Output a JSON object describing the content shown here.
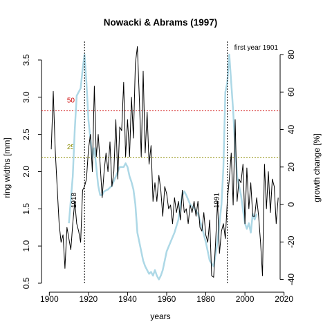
{
  "chart_data": {
    "type": "line",
    "title": "Nowacki & Abrams (1997)",
    "xlabel": "years",
    "ylabel_left": "ring widths [mm]",
    "ylabel_right": "growth change [%]",
    "note": "first year 1901",
    "xlim": [
      1896,
      2018
    ],
    "ylim_left": [
      0.5,
      3.75
    ],
    "ylim_right": [
      -42,
      87
    ],
    "x_ticks": [
      1900,
      1920,
      1940,
      1960,
      1980,
      2000,
      2020
    ],
    "y_left_ticks": [
      "0.5",
      "1.0",
      "1.5",
      "2.0",
      "2.5",
      "3.0",
      "3.5"
    ],
    "y_right_ticks": [
      "-40",
      "-20",
      "0",
      "20",
      "40",
      "60",
      "80"
    ],
    "colors": {
      "ring_width": "#000000",
      "growth_change": "#add8e6",
      "threshold_50": "#cd0000",
      "threshold_25": "#8b8b00"
    },
    "thresholds": [
      {
        "label": "50",
        "value": 50,
        "color": "#cd0000"
      },
      {
        "label": "25",
        "value": 25,
        "color": "#8b8b00"
      }
    ],
    "events": [
      {
        "label": "1918",
        "year": 1918
      },
      {
        "label": "1991",
        "year": 1991
      }
    ],
    "series": [
      {
        "axis": "left",
        "color": "#000000",
        "x": [
          1901,
          1902,
          1903,
          1904,
          1905,
          1906,
          1907,
          1908,
          1909,
          1910,
          1911,
          1912,
          1913,
          1914,
          1915,
          1916,
          1917,
          1918,
          1919,
          1920,
          1921,
          1922,
          1923,
          1924,
          1925,
          1926,
          1927,
          1928,
          1929,
          1930,
          1931,
          1932,
          1933,
          1934,
          1935,
          1936,
          1937,
          1938,
          1939,
          1940,
          1941,
          1942,
          1943,
          1944,
          1945,
          1946,
          1947,
          1948,
          1949,
          1950,
          1951,
          1952,
          1953,
          1954,
          1955,
          1956,
          1957,
          1958,
          1959,
          1960,
          1961,
          1962,
          1963,
          1964,
          1965,
          1966,
          1967,
          1968,
          1969,
          1970,
          1971,
          1972,
          1973,
          1974,
          1975,
          1976,
          1977,
          1978,
          1979,
          1980,
          1981,
          1982,
          1983,
          1984,
          1985,
          1986,
          1987,
          1988,
          1989,
          1990,
          1991,
          1992,
          1993,
          1994,
          1995,
          1996,
          1997,
          1998,
          1999,
          2000,
          2001,
          2002,
          2003,
          2004,
          2005,
          2006,
          2007,
          2008,
          2009,
          2010,
          2011,
          2012,
          2013,
          2014,
          2015,
          2016,
          2017
        ],
        "y": [
          2.3,
          3.08,
          2.3,
          1.8,
          1.3,
          1.05,
          1.15,
          0.7,
          1.25,
          1.1,
          0.95,
          1.3,
          1.6,
          1.3,
          1.2,
          1.05,
          1.75,
          1.8,
          1.9,
          2.3,
          2.5,
          2.0,
          3.15,
          2.2,
          2.5,
          2.1,
          1.65,
          2.0,
          2.25,
          2.0,
          2.4,
          1.8,
          2.0,
          2.7,
          1.9,
          2.6,
          2.55,
          3.2,
          2.2,
          2.7,
          2.2,
          3.0,
          2.45,
          3.45,
          3.68,
          3.0,
          2.2,
          3.35,
          2.25,
          2.8,
          2.1,
          2.35,
          1.6,
          1.85,
          1.6,
          1.95,
          1.75,
          1.4,
          1.8,
          1.7,
          1.5,
          1.55,
          1.3,
          1.65,
          1.45,
          1.6,
          1.35,
          1.75,
          1.45,
          1.5,
          1.3,
          1.55,
          1.45,
          1.6,
          1.4,
          1.6,
          1.25,
          1.2,
          1.45,
          1.15,
          1.05,
          1.35,
          0.6,
          0.58,
          1.05,
          1.6,
          0.9,
          1.2,
          1.3,
          1.1,
          1.6,
          1.9,
          2.25,
          1.55,
          2.7,
          1.6,
          1.9,
          1.85,
          2.1,
          1.3,
          2.05,
          1.5,
          1.85,
          1.4,
          1.4,
          1.65,
          1.4,
          1.05,
          0.6,
          2.1,
          1.5,
          2.0,
          1.45,
          1.9,
          1.8,
          1.3,
          1.65
        ]
      },
      {
        "axis": "right",
        "color": "#add8e6",
        "x": [
          1910,
          1912,
          1913,
          1914,
          1915,
          1916,
          1917,
          1918,
          1919,
          1920,
          1921,
          1922,
          1923,
          1924,
          1925,
          1926,
          1927,
          1928,
          1930,
          1932,
          1934,
          1936,
          1938,
          1939,
          1940,
          1941,
          1942,
          1943,
          1944,
          1945,
          1946,
          1947,
          1948,
          1949,
          1950,
          1951,
          1952,
          1953,
          1954,
          1955,
          1956,
          1957,
          1958,
          1960,
          1962,
          1964,
          1966,
          1967,
          1968,
          1969,
          1970,
          1972,
          1974,
          1976,
          1978,
          1980,
          1982,
          1984,
          1986,
          1987,
          1988,
          1989,
          1990,
          1991,
          1992,
          1993,
          1994,
          1995,
          1996,
          1997,
          1998,
          1999,
          2000,
          2001,
          2002,
          2003,
          2004,
          2005,
          2006
        ],
        "y": [
          -10,
          15,
          40,
          58,
          60,
          62,
          72,
          80,
          65,
          45,
          35,
          25,
          30,
          20,
          10,
          5,
          5,
          7,
          8,
          10,
          15,
          20,
          20,
          22,
          20,
          15,
          12,
          8,
          0,
          -15,
          -20,
          -25,
          -30,
          -33,
          -35,
          -37,
          -36,
          -38,
          -35,
          -38,
          -40,
          -38,
          -35,
          -25,
          -20,
          -15,
          -8,
          0,
          5,
          7,
          5,
          0,
          -2,
          -5,
          -12,
          -20,
          -30,
          -33,
          -20,
          -10,
          0,
          20,
          60,
          65,
          80,
          65,
          50,
          30,
          15,
          10,
          5,
          -3,
          -10,
          -13,
          -10,
          -15,
          -5,
          -8,
          -5
        ]
      }
    ]
  }
}
